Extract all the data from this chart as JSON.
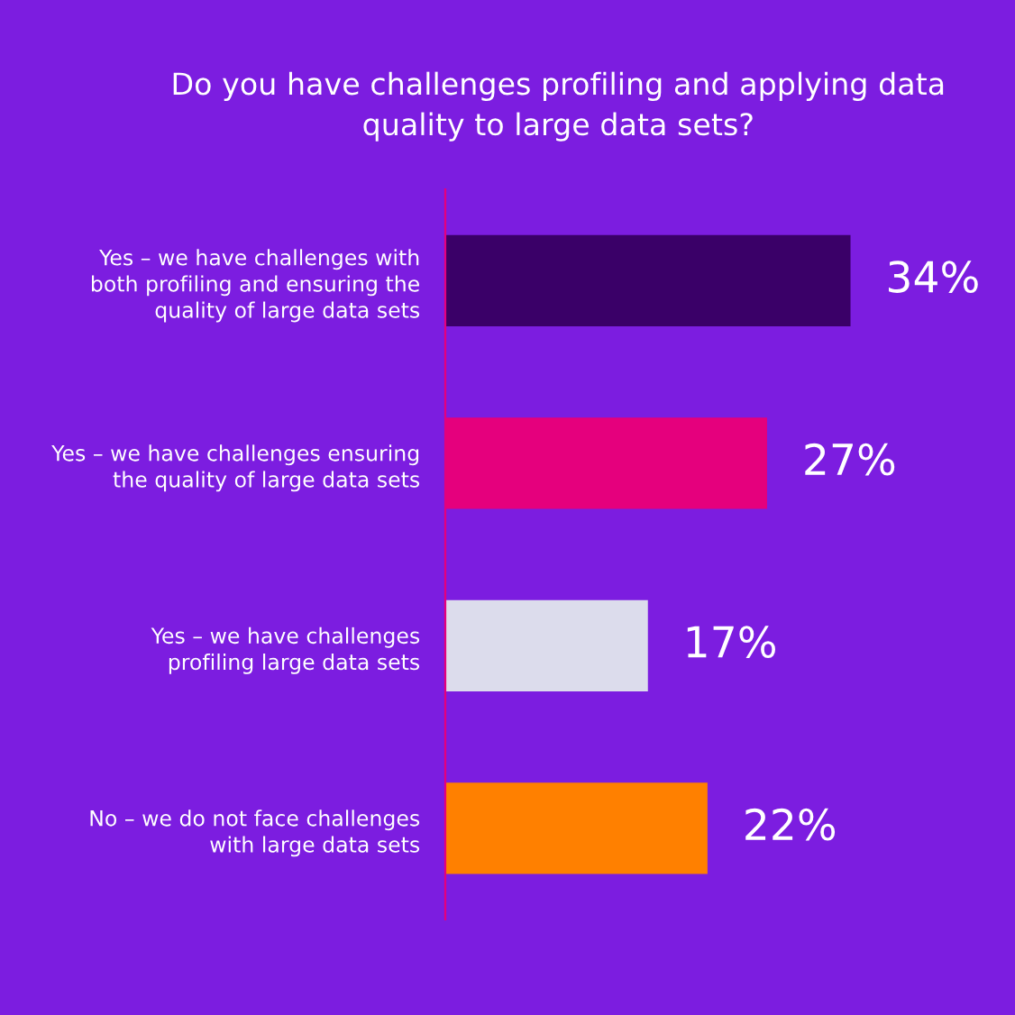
{
  "chart_data": {
    "type": "bar",
    "orientation": "horizontal",
    "title": "Do you have challenges profiling and applying data\nquality to large data sets?",
    "categories": [
      "Yes – we have challenges with\nboth profiling and ensuring the\nquality of large data sets",
      "Yes – we have challenges ensuring\nthe quality of large data sets",
      "Yes – we have challenges\nprofiling large data sets",
      "No – we do not face challenges\nwith large data sets"
    ],
    "values": [
      34,
      27,
      17,
      22
    ],
    "colors": [
      "#3a0068",
      "#e5007d",
      "#dcdcec",
      "#ff8000"
    ],
    "value_labels": [
      "34%",
      "27%",
      "17%",
      "22%"
    ],
    "tick_labels": "y",
    "grid": false,
    "legend": false
  }
}
